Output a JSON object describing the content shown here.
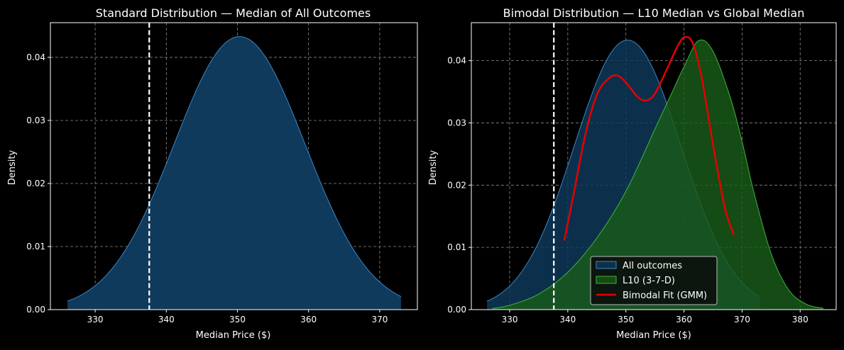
{
  "chart_data": [
    {
      "type": "area",
      "title": "Standard Distribution — Median of All Outcomes",
      "xlabel": "Median Price ($)",
      "ylabel": "Density",
      "xlim": [
        323.7,
        375.3
      ],
      "ylim": [
        0,
        0.0455
      ],
      "xticks": [
        330,
        340,
        350,
        360,
        370
      ],
      "yticks": [
        0.0,
        0.01,
        0.02,
        0.03,
        0.04
      ],
      "ytick_labels": [
        "0.00",
        "0.01",
        "0.02",
        "0.03",
        "0.04"
      ],
      "grid": true,
      "reference_line": {
        "x": 337.6,
        "style": "dashed",
        "color": "#ffffff"
      },
      "series": [
        {
          "name": "All outcomes",
          "kind": "area",
          "mean": 350.3,
          "sd": 9.2,
          "peak": 0.0433,
          "x_min": 326.1,
          "x_max": 373.0,
          "fill": "#0f3a5c",
          "stroke": "#3a86c8"
        }
      ]
    },
    {
      "type": "area",
      "title": "Bimodal Distribution — L10 Median vs Global Median",
      "xlabel": "Median Price ($)",
      "ylabel": "Density",
      "xlim": [
        323.4,
        386.2
      ],
      "ylim": [
        0,
        0.0461
      ],
      "xticks": [
        330,
        340,
        350,
        360,
        370,
        380
      ],
      "yticks": [
        0.0,
        0.01,
        0.02,
        0.03,
        0.04
      ],
      "ytick_labels": [
        "0.00",
        "0.01",
        "0.02",
        "0.03",
        "0.04"
      ],
      "grid": true,
      "reference_line": {
        "x": 337.6,
        "style": "dashed",
        "color": "#ffffff"
      },
      "legend_position": "lower-center",
      "series": [
        {
          "name": "All outcomes",
          "kind": "area",
          "mean": 350.3,
          "sd": 9.2,
          "peak": 0.0433,
          "x_min": 326.1,
          "x_max": 373.0,
          "fill": "#0f3a5c",
          "stroke": "#3a86c8"
        },
        {
          "name": "L10 (3-7-D)",
          "kind": "area",
          "x": [
            327.0,
            330,
            335,
            340,
            345,
            350,
            355,
            358,
            360,
            362.5,
            365,
            368,
            370,
            372,
            375,
            378,
            381,
            384.0
          ],
          "y": [
            0.0002,
            0.0007,
            0.0025,
            0.006,
            0.0115,
            0.019,
            0.029,
            0.035,
            0.039,
            0.0432,
            0.0415,
            0.034,
            0.027,
            0.019,
            0.009,
            0.0032,
            0.0009,
            0.0002
          ],
          "fill": "#1a5c1a",
          "stroke": "#3cb43c"
        },
        {
          "name": "Bimodal Fit (GMM)",
          "kind": "line",
          "x": [
            339.4,
            341,
            343,
            345,
            347,
            348.5,
            350,
            352,
            353.5,
            355,
            357,
            359,
            360.2,
            361.5,
            363,
            365,
            367,
            368.6
          ],
          "y": [
            0.0111,
            0.0185,
            0.028,
            0.0345,
            0.0371,
            0.0376,
            0.0365,
            0.0342,
            0.0336,
            0.0347,
            0.0385,
            0.0425,
            0.0438,
            0.0428,
            0.0375,
            0.0265,
            0.0165,
            0.012
          ],
          "color": "#e60000"
        }
      ]
    }
  ]
}
